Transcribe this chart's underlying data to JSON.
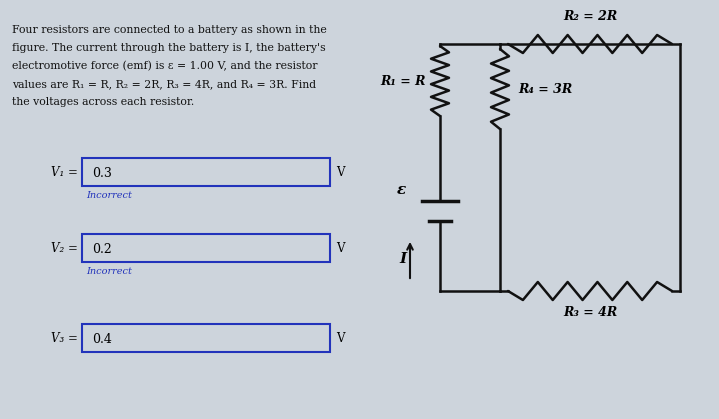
{
  "bg_color": "#cdd4dc",
  "text_color": "#111111",
  "problem_text_line1": "Four resistors are connected to a battery as shown in the",
  "problem_text_line2": "figure. The current through the battery is I, the battery's",
  "problem_text_line3": "electromotive force (emf) is ε = 1.00 V, and the resistor",
  "problem_text_line4": "values are R₁ = R, R₂ = 2R, R₃ = 4R, and R₄ = 3R. Find",
  "problem_text_line5": "the voltages across each resistor.",
  "v1_label": "V₁ =",
  "v1_value": "0.3",
  "v1_incorrect": "Incorrect",
  "v2_label": "V₂ =",
  "v2_value": "0.2",
  "v2_incorrect": "Incorrect",
  "v3_label": "V₃ =",
  "v3_value": "0.4",
  "v_unit": "V",
  "box_edge_color": "#2233bb",
  "incorrect_color": "#2233bb",
  "R1_label": "R₁ = R",
  "R2_label": "R₂ = 2R",
  "R3_label": "R₃ = 4R",
  "R4_label": "R₄ = 3R",
  "emf_label": "ε",
  "current_label": "I",
  "circuit_line_color": "#111111",
  "circuit_lw": 1.8
}
